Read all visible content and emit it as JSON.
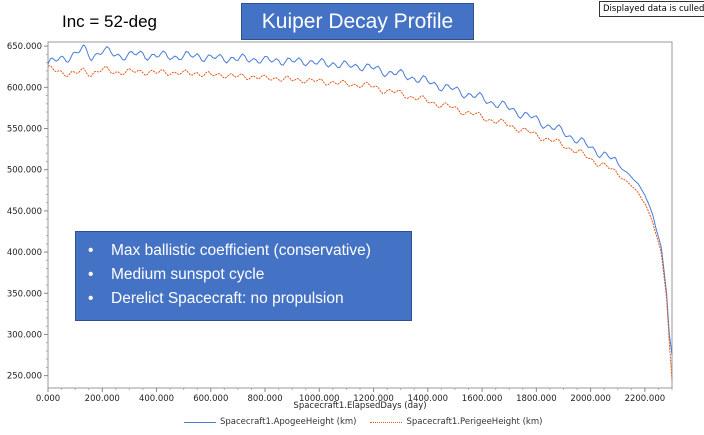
{
  "header": {
    "inc_label": "Inc = 52-deg",
    "title": "Kuiper Decay Profile",
    "culled_notice": "Displayed data is culled!"
  },
  "notes": [
    "Max ballistic coefficient (conservative)",
    "Medium sunspot cycle",
    "Derelict Spacecraft: no propulsion"
  ],
  "colors": {
    "title_fill": "#4472c4",
    "apogee": "#4a7bd6",
    "perigee": "#e05a1c"
  },
  "chart_data": {
    "type": "line",
    "xlabel": "Spacecraft1.ElapsedDays (day)",
    "ylabel": "",
    "xlim": [
      0,
      2300
    ],
    "ylim": [
      235,
      655
    ],
    "x_ticks": [
      0,
      200,
      400,
      600,
      800,
      1000,
      1200,
      1400,
      1600,
      1800,
      2000,
      2200
    ],
    "x_tick_labels": [
      "0.000",
      "200.000",
      "400.000",
      "600.000",
      "800.000",
      "1000.000",
      "1200.000",
      "1400.000",
      "1600.000",
      "1800.000",
      "2000.000",
      "2200.000"
    ],
    "y_ticks": [
      250,
      300,
      350,
      400,
      450,
      500,
      550,
      600,
      650
    ],
    "y_tick_labels": [
      "250.000",
      "300.000",
      "350.000",
      "400.000",
      "450.000",
      "500.000",
      "550.000",
      "600.000",
      "650.000"
    ],
    "grid": false,
    "legend_position": "bottom",
    "series": [
      {
        "name": "Spacecraft1.ApogeeHeight (km)",
        "style": "solid",
        "x": [
          0,
          30,
          60,
          100,
          130,
          160,
          200,
          250,
          300,
          350,
          400,
          450,
          500,
          550,
          600,
          650,
          700,
          750,
          800,
          850,
          900,
          950,
          1000,
          1050,
          1100,
          1150,
          1200,
          1250,
          1300,
          1350,
          1400,
          1450,
          1500,
          1550,
          1600,
          1650,
          1700,
          1750,
          1800,
          1850,
          1900,
          1950,
          2000,
          2050,
          2100,
          2150,
          2200,
          2230,
          2260,
          2280,
          2290,
          2300
        ],
        "y": [
          628,
          632,
          636,
          640,
          646,
          638,
          644,
          640,
          638,
          641,
          637,
          639,
          636,
          640,
          634,
          637,
          633,
          636,
          631,
          634,
          630,
          633,
          628,
          630,
          625,
          627,
          622,
          619,
          615,
          612,
          606,
          602,
          596,
          592,
          586,
          581,
          574,
          568,
          560,
          553,
          545,
          537,
          526,
          519,
          507,
          492,
          470,
          445,
          405,
          350,
          300,
          275
        ]
      },
      {
        "name": "Spacecraft1.PerigeeHeight (km)",
        "style": "dotted",
        "x": [
          0,
          30,
          60,
          100,
          130,
          160,
          200,
          250,
          300,
          350,
          400,
          450,
          500,
          550,
          600,
          650,
          700,
          750,
          800,
          850,
          900,
          950,
          1000,
          1050,
          1100,
          1150,
          1200,
          1250,
          1300,
          1350,
          1400,
          1450,
          1500,
          1550,
          1600,
          1650,
          1700,
          1750,
          1800,
          1850,
          1900,
          1950,
          2000,
          2050,
          2100,
          2150,
          2200,
          2230,
          2260,
          2280,
          2290,
          2300
        ],
        "y": [
          622,
          620,
          618,
          616,
          620,
          617,
          621,
          619,
          618,
          620,
          617,
          619,
          616,
          618,
          614,
          616,
          612,
          614,
          610,
          612,
          608,
          610,
          606,
          607,
          603,
          604,
          600,
          596,
          592,
          588,
          583,
          579,
          574,
          569,
          564,
          559,
          554,
          548,
          542,
          536,
          530,
          522,
          513,
          505,
          495,
          481,
          460,
          436,
          398,
          345,
          290,
          245
        ]
      }
    ]
  }
}
